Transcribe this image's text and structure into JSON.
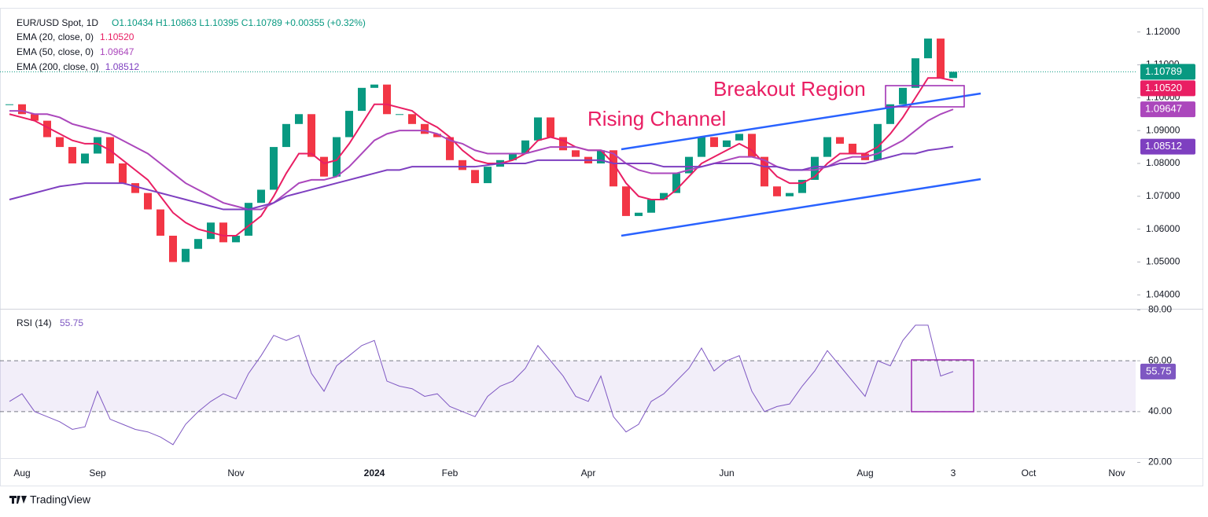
{
  "chart_data": {
    "type": "candlestick",
    "symbol": "EUR/USD Spot, 1D",
    "ohlc_text": "O1.10434  H1.10863  L1.10395  C1.10789  +0.00355 (+0.32%)",
    "annotations": [
      "Rising Channel",
      "Breakout Region"
    ],
    "brand": "TradingView",
    "up_color": "#089981",
    "down_color": "#f23645",
    "categories": [
      null,
      "Aug",
      null,
      null,
      null,
      null,
      null,
      "Sep",
      null,
      null,
      null,
      null,
      null,
      null,
      null,
      null,
      null,
      null,
      "Nov",
      null,
      null,
      null,
      null,
      null,
      null,
      null,
      null,
      null,
      null,
      "2024",
      null,
      null,
      null,
      null,
      null,
      "Feb",
      null,
      null,
      null,
      null,
      null,
      null,
      null,
      null,
      null,
      null,
      "Apr",
      null,
      null,
      null,
      null,
      null,
      null,
      null,
      null,
      null,
      null,
      "Jun",
      null,
      null,
      null,
      null,
      null,
      null,
      null,
      null,
      null,
      null,
      "Aug",
      null,
      null,
      null,
      null,
      null,
      null,
      "3",
      null,
      null,
      null,
      null,
      null,
      "Oct",
      null,
      null,
      null,
      null,
      null,
      null,
      "Nov",
      null
    ],
    "ylim": [
      1.036,
      1.124
    ],
    "yticks": [
      {
        "value": 1.04,
        "label": "1.04000"
      },
      {
        "value": 1.05,
        "label": "1.05000"
      },
      {
        "value": 1.06,
        "label": "1.06000"
      },
      {
        "value": 1.07,
        "label": "1.07000"
      },
      {
        "value": 1.08,
        "label": "1.08000"
      },
      {
        "value": 1.09,
        "label": "1.09000"
      },
      {
        "value": 1.1,
        "label": "1.10000"
      },
      {
        "value": 1.11,
        "label": "1.11000"
      },
      {
        "value": 1.12,
        "label": "1.12000"
      }
    ],
    "series": [
      {
        "name": "EUR/USD",
        "color": "#089981",
        "last_label": "1.10789",
        "values": [
          1.098,
          1.095,
          1.093,
          1.088,
          1.085,
          1.08,
          1.083,
          1.088,
          1.08,
          1.074,
          1.071,
          1.066,
          1.058,
          1.05,
          1.054,
          1.057,
          1.062,
          1.056,
          1.058,
          1.068,
          1.072,
          1.085,
          1.092,
          1.095,
          1.082,
          1.076,
          1.088,
          1.096,
          1.103,
          1.104,
          1.095,
          1.095,
          1.092,
          1.089,
          1.088,
          1.081,
          1.078,
          1.074,
          1.079,
          1.081,
          1.083,
          1.087,
          1.094,
          1.088,
          1.084,
          1.082,
          1.08,
          1.084,
          1.073,
          1.064,
          1.065,
          1.069,
          1.071,
          1.077,
          1.082,
          1.088,
          1.085,
          1.087,
          1.089,
          1.082,
          1.073,
          1.07,
          1.071,
          1.075,
          1.082,
          1.088,
          1.086,
          1.083,
          1.081,
          1.092,
          1.098,
          1.103,
          1.112,
          1.118,
          1.106,
          1.10789,
          null,
          null,
          null,
          null,
          null,
          null,
          null,
          null,
          null,
          null,
          null,
          null,
          null,
          null
        ]
      },
      {
        "name": "EMA (20, close, 0)",
        "color": "#e91e63",
        "last_label": "1.10520",
        "values": [
          1.095,
          1.094,
          1.093,
          1.091,
          1.089,
          1.087,
          1.086,
          1.086,
          1.084,
          1.081,
          1.078,
          1.075,
          1.07,
          1.065,
          1.062,
          1.06,
          1.059,
          1.058,
          1.058,
          1.061,
          1.064,
          1.07,
          1.077,
          1.083,
          1.083,
          1.08,
          1.081,
          1.086,
          1.092,
          1.098,
          1.098,
          1.097,
          1.096,
          1.093,
          1.091,
          1.088,
          1.084,
          1.081,
          1.08,
          1.08,
          1.081,
          1.083,
          1.087,
          1.088,
          1.087,
          1.085,
          1.084,
          1.084,
          1.08,
          1.074,
          1.07,
          1.069,
          1.069,
          1.072,
          1.076,
          1.08,
          1.082,
          1.084,
          1.086,
          1.084,
          1.08,
          1.076,
          1.074,
          1.074,
          1.076,
          1.08,
          1.083,
          1.083,
          1.083,
          1.085,
          1.089,
          1.094,
          1.1,
          1.106,
          1.106,
          1.1052,
          null,
          null,
          null,
          null,
          null,
          null,
          null,
          null,
          null,
          null,
          null,
          null,
          null,
          null
        ]
      },
      {
        "name": "EMA (50, close, 0)",
        "color": "#ab47bc",
        "last_label": "1.09647",
        "values": [
          1.096,
          1.096,
          1.095,
          1.095,
          1.094,
          1.092,
          1.091,
          1.09,
          1.089,
          1.087,
          1.085,
          1.083,
          1.08,
          1.077,
          1.074,
          1.072,
          1.07,
          1.068,
          1.067,
          1.066,
          1.066,
          1.068,
          1.071,
          1.074,
          1.075,
          1.075,
          1.076,
          1.079,
          1.083,
          1.087,
          1.089,
          1.09,
          1.09,
          1.09,
          1.089,
          1.087,
          1.086,
          1.084,
          1.083,
          1.083,
          1.083,
          1.083,
          1.084,
          1.085,
          1.085,
          1.085,
          1.084,
          1.084,
          1.083,
          1.08,
          1.078,
          1.077,
          1.077,
          1.077,
          1.078,
          1.079,
          1.08,
          1.081,
          1.082,
          1.082,
          1.081,
          1.079,
          1.078,
          1.078,
          1.078,
          1.079,
          1.081,
          1.082,
          1.082,
          1.083,
          1.085,
          1.087,
          1.09,
          1.093,
          1.095,
          1.09647,
          null,
          null,
          null,
          null,
          null,
          null,
          null,
          null,
          null,
          null,
          null,
          null,
          null,
          null
        ]
      },
      {
        "name": "EMA (200, close, 0)",
        "color": "#7e3fc0",
        "last_label": "1.08512",
        "values": [
          1.069,
          1.07,
          1.071,
          1.072,
          1.073,
          1.0735,
          1.074,
          1.074,
          1.074,
          1.074,
          1.073,
          1.072,
          1.071,
          1.07,
          1.069,
          1.068,
          1.067,
          1.066,
          1.066,
          1.066,
          1.067,
          1.068,
          1.07,
          1.071,
          1.072,
          1.073,
          1.074,
          1.075,
          1.076,
          1.077,
          1.078,
          1.078,
          1.079,
          1.079,
          1.079,
          1.079,
          1.079,
          1.079,
          1.0795,
          1.08,
          1.08,
          1.08,
          1.081,
          1.081,
          1.081,
          1.081,
          1.081,
          1.081,
          1.08,
          1.08,
          1.08,
          1.08,
          1.079,
          1.079,
          1.079,
          1.079,
          1.08,
          1.08,
          1.08,
          1.08,
          1.079,
          1.079,
          1.078,
          1.078,
          1.079,
          1.079,
          1.08,
          1.08,
          1.08,
          1.081,
          1.082,
          1.083,
          1.083,
          1.084,
          1.0845,
          1.08512,
          null,
          null,
          null,
          null,
          null,
          null,
          null,
          null,
          null,
          null,
          null,
          null,
          null,
          null
        ]
      }
    ],
    "rsi": {
      "name": "RSI (14)",
      "color": "#7e57c2",
      "last_label": "55.75",
      "ylim": [
        18,
        82
      ],
      "yticks": [
        {
          "value": 20,
          "label": "20.00"
        },
        {
          "value": 40,
          "label": "40.00"
        },
        {
          "value": 60,
          "label": "60.00"
        },
        {
          "value": 80,
          "label": "80.00"
        }
      ],
      "band": [
        40,
        60
      ],
      "values": [
        44,
        47,
        40,
        38,
        36,
        33,
        34,
        48,
        37,
        35,
        33,
        32,
        30,
        27,
        35,
        40,
        44,
        47,
        45,
        55,
        62,
        70,
        68,
        70,
        55,
        48,
        58,
        62,
        66,
        68,
        52,
        50,
        49,
        46,
        47,
        42,
        40,
        38,
        46,
        50,
        52,
        57,
        66,
        60,
        54,
        46,
        44,
        54,
        38,
        32,
        35,
        44,
        47,
        52,
        57,
        65,
        56,
        60,
        62,
        48,
        40,
        42,
        43,
        50,
        56,
        64,
        58,
        52,
        46,
        60,
        58,
        68,
        74,
        74,
        54,
        55.75,
        null,
        null,
        null,
        null,
        null,
        null,
        null,
        null,
        null,
        null,
        null,
        null,
        null,
        null
      ]
    }
  }
}
